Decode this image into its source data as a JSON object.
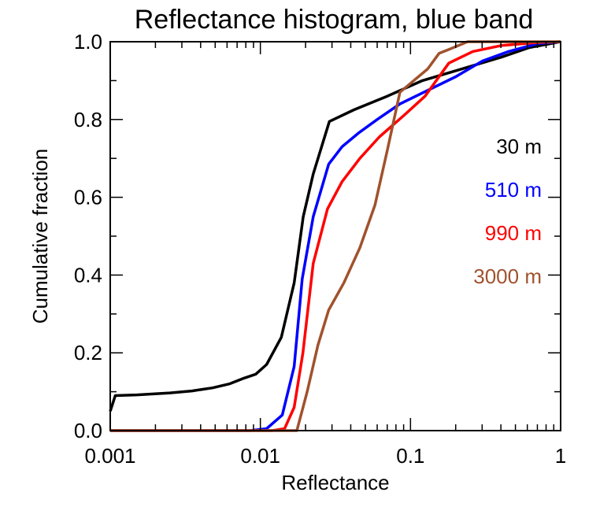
{
  "chart_data": {
    "type": "line",
    "title": "Reflectance histogram, blue band",
    "xlabel": "Reflectance",
    "ylabel": "Cumulative fraction",
    "xscale": "log",
    "xlim": [
      0.001,
      1
    ],
    "ylim": [
      0,
      1
    ],
    "xticks": [
      {
        "value": 0.001,
        "label": "0.001"
      },
      {
        "value": 0.01,
        "label": "0.01"
      },
      {
        "value": 0.1,
        "label": "0.1"
      },
      {
        "value": 1,
        "label": "1"
      }
    ],
    "yticks": [
      {
        "value": 0.0,
        "label": "0.0"
      },
      {
        "value": 0.2,
        "label": "0.2"
      },
      {
        "value": 0.4,
        "label": "0.4"
      },
      {
        "value": 0.6,
        "label": "0.6"
      },
      {
        "value": 0.8,
        "label": "0.8"
      },
      {
        "value": 1.0,
        "label": "1.0"
      }
    ],
    "grid": false,
    "legend_position": "right",
    "series": [
      {
        "name": "30 m",
        "color": "#000000",
        "points": [
          [
            0.001,
            0.05
          ],
          [
            0.00108,
            0.09
          ],
          [
            0.0015,
            0.092
          ],
          [
            0.0025,
            0.097
          ],
          [
            0.0035,
            0.102
          ],
          [
            0.0048,
            0.11
          ],
          [
            0.0062,
            0.12
          ],
          [
            0.0078,
            0.135
          ],
          [
            0.0093,
            0.145
          ],
          [
            0.011,
            0.17
          ],
          [
            0.0138,
            0.24
          ],
          [
            0.0168,
            0.38
          ],
          [
            0.0193,
            0.55
          ],
          [
            0.0225,
            0.66
          ],
          [
            0.0288,
            0.795
          ],
          [
            0.042,
            0.825
          ],
          [
            0.07,
            0.86
          ],
          [
            0.12,
            0.9
          ],
          [
            0.22,
            0.93
          ],
          [
            0.4,
            0.96
          ],
          [
            0.62,
            0.985
          ],
          [
            1.0,
            1.0
          ]
        ]
      },
      {
        "name": "510 m",
        "color": "#0000ff",
        "points": [
          [
            0.001,
            0.0
          ],
          [
            0.0085,
            0.0
          ],
          [
            0.011,
            0.005
          ],
          [
            0.014,
            0.04
          ],
          [
            0.0168,
            0.165
          ],
          [
            0.019,
            0.39
          ],
          [
            0.0225,
            0.55
          ],
          [
            0.0285,
            0.685
          ],
          [
            0.035,
            0.73
          ],
          [
            0.045,
            0.765
          ],
          [
            0.06,
            0.8
          ],
          [
            0.085,
            0.84
          ],
          [
            0.13,
            0.875
          ],
          [
            0.2,
            0.91
          ],
          [
            0.3,
            0.95
          ],
          [
            0.45,
            0.975
          ],
          [
            0.7,
            0.995
          ],
          [
            1.0,
            1.0
          ]
        ]
      },
      {
        "name": "990 m",
        "color": "#ff0000",
        "points": [
          [
            0.001,
            0.0
          ],
          [
            0.012,
            0.0
          ],
          [
            0.0145,
            0.005
          ],
          [
            0.0168,
            0.06
          ],
          [
            0.0192,
            0.2
          ],
          [
            0.0225,
            0.43
          ],
          [
            0.028,
            0.57
          ],
          [
            0.035,
            0.64
          ],
          [
            0.046,
            0.7
          ],
          [
            0.062,
            0.755
          ],
          [
            0.09,
            0.81
          ],
          [
            0.125,
            0.86
          ],
          [
            0.18,
            0.945
          ],
          [
            0.26,
            0.975
          ],
          [
            0.4,
            0.99
          ],
          [
            0.7,
            0.998
          ],
          [
            1.0,
            1.0
          ]
        ]
      },
      {
        "name": "3000 m",
        "color": "#a0522d",
        "points": [
          [
            0.001,
            0.0
          ],
          [
            0.0175,
            0.0
          ],
          [
            0.0205,
            0.1
          ],
          [
            0.0242,
            0.22
          ],
          [
            0.0285,
            0.31
          ],
          [
            0.036,
            0.38
          ],
          [
            0.046,
            0.47
          ],
          [
            0.058,
            0.58
          ],
          [
            0.07,
            0.72
          ],
          [
            0.085,
            0.87
          ],
          [
            0.105,
            0.9
          ],
          [
            0.13,
            0.93
          ],
          [
            0.155,
            0.97
          ],
          [
            0.18,
            0.98
          ],
          [
            0.24,
            1.0
          ],
          [
            1.0,
            1.0
          ]
        ]
      }
    ]
  }
}
